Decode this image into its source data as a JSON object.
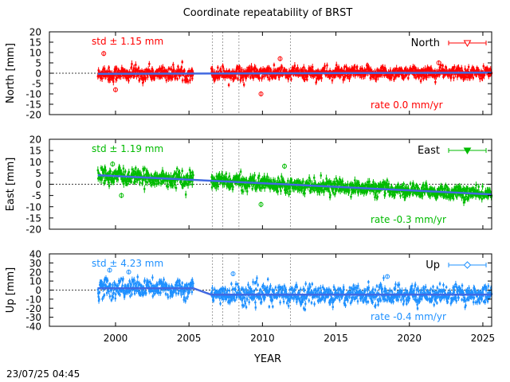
{
  "chart_data": {
    "type": "scatter",
    "title": "Coordinate repeatability of BRST",
    "xlabel": "YEAR",
    "xlim": [
      1995.5,
      2025.6
    ],
    "xticks": [
      2000,
      2005,
      2010,
      2015,
      2020,
      2025
    ],
    "timestamp": "23/07/25 04:45",
    "data_span": [
      1998.8,
      2025.6
    ],
    "gap": [
      2005.3,
      2006.5
    ],
    "event_lines": [
      2006.6,
      2007.3,
      2008.4,
      2011.9
    ],
    "panels": [
      {
        "name": "North",
        "ylabel": "North [mm]",
        "ylim": [
          -20,
          20
        ],
        "yticks": [
          -20,
          -15,
          -10,
          -5,
          0,
          5,
          10,
          15,
          20
        ],
        "color": "#ff0000",
        "std_label": "std ± 1.15 mm",
        "rate_label": "rate  0.0 mm/yr",
        "legend_label": "North",
        "marker": "triangle-down-open",
        "trend": [
          [
            1998.8,
            -0.3
          ],
          [
            2025.6,
            0.3
          ]
        ],
        "noise_sd": 1.8,
        "noise_env": [
          [
            1998.8,
            2.2
          ],
          [
            2005.3,
            2.0
          ],
          [
            2010.0,
            1.9
          ],
          [
            2025.6,
            1.8
          ]
        ],
        "outliers": [
          [
            1999.2,
            9.5
          ],
          [
            2000.0,
            -8.0
          ],
          [
            2009.9,
            -10.0
          ],
          [
            2011.2,
            7.0
          ],
          [
            2022.0,
            5.0
          ]
        ]
      },
      {
        "name": "East",
        "ylabel": "East [mm]",
        "ylim": [
          -20,
          20
        ],
        "yticks": [
          -20,
          -15,
          -10,
          -5,
          0,
          5,
          10,
          15,
          20
        ],
        "color": "#00bb00",
        "std_label": "std ± 1.19 mm",
        "rate_label": "rate -0.3 mm/yr",
        "legend_label": "East",
        "marker": "triangle-down-filled",
        "trend": [
          [
            1998.8,
            4.0
          ],
          [
            2025.6,
            -4.5
          ]
        ],
        "noise_sd": 1.9,
        "noise_env": [
          [
            1998.8,
            2.3
          ],
          [
            2005.3,
            2.1
          ],
          [
            2010.0,
            1.9
          ],
          [
            2025.6,
            1.8
          ]
        ],
        "outliers": [
          [
            1999.8,
            9.0
          ],
          [
            2000.4,
            -5.0
          ],
          [
            2009.9,
            -9.0
          ],
          [
            2011.5,
            8.0
          ]
        ]
      },
      {
        "name": "Up",
        "ylabel": "Up [mm]",
        "ylim": [
          -40,
          40
        ],
        "yticks": [
          -40,
          -30,
          -20,
          -10,
          0,
          10,
          20,
          30,
          40
        ],
        "color": "#1e90ff",
        "std_label": "std ± 4.23 mm",
        "rate_label": "rate -0.4 mm/yr",
        "legend_label": "Up",
        "marker": "diamond-open",
        "trend": [
          [
            1998.8,
            2.0
          ],
          [
            2005.3,
            2.0
          ],
          [
            2006.5,
            -5.0
          ],
          [
            2025.6,
            -5.0
          ]
        ],
        "noise_sd": 5.5,
        "noise_env": [
          [
            1998.8,
            7.0
          ],
          [
            2005.3,
            6.0
          ],
          [
            2010.0,
            7.0
          ],
          [
            2025.6,
            6.0
          ]
        ],
        "outliers": [
          [
            1999.6,
            22.0
          ],
          [
            2000.9,
            20.0
          ],
          [
            2008.0,
            18.0
          ],
          [
            2018.5,
            15.0
          ]
        ]
      }
    ]
  }
}
